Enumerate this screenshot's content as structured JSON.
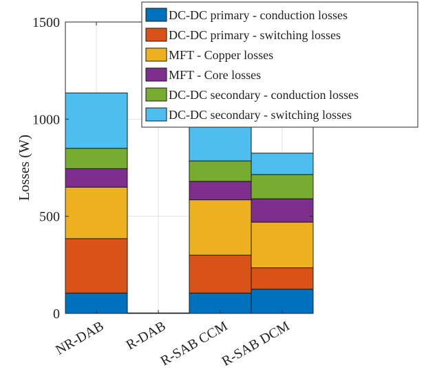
{
  "chart_data": {
    "type": "bar",
    "stacked": true,
    "title": "",
    "xlabel": "",
    "ylabel": "Losses (W)",
    "ylim": [
      0,
      1500
    ],
    "yticks": [
      0,
      500,
      1000,
      1500
    ],
    "grid": true,
    "legend_position": "top-right",
    "categories": [
      "NR-DAB",
      "R-DAB",
      "R-SAB CCM",
      "R-SAB DCM"
    ],
    "series": [
      {
        "name": "DC-DC primary - conduction losses",
        "color": "#0072BD",
        "values": [
          105,
          0,
          105,
          125
        ]
      },
      {
        "name": "DC-DC primary - switching losses",
        "color": "#D95319",
        "values": [
          280,
          0,
          195,
          110
        ]
      },
      {
        "name": "MFT - Copper losses",
        "color": "#EDB120",
        "values": [
          265,
          0,
          285,
          235
        ]
      },
      {
        "name": "MFT - Core losses",
        "color": "#7E2F8E",
        "values": [
          95,
          0,
          95,
          120
        ]
      },
      {
        "name": "DC-DC secondary - conduction losses",
        "color": "#77AC30",
        "values": [
          105,
          0,
          105,
          125
        ]
      },
      {
        "name": "DC-DC secondary - switching losses",
        "color": "#4DBEEE",
        "values": [
          285,
          0,
          195,
          110
        ]
      }
    ]
  }
}
